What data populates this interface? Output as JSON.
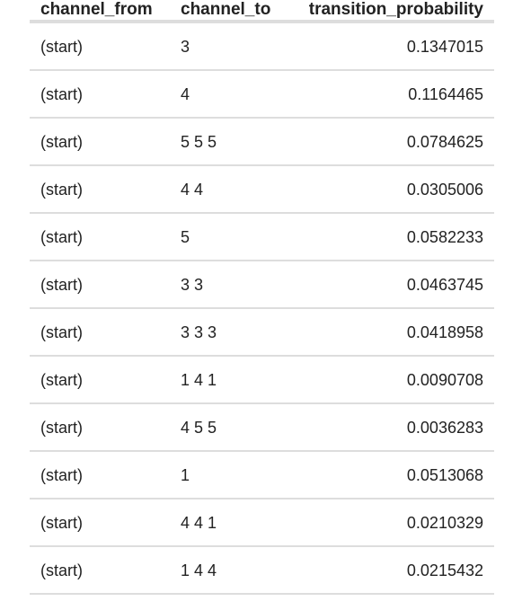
{
  "table": {
    "headers": [
      "channel_from",
      "channel_to",
      "transition_probability"
    ],
    "rows": [
      [
        "(start)",
        "3",
        "0.1347015"
      ],
      [
        "(start)",
        "4",
        "0.1164465"
      ],
      [
        "(start)",
        "5 5 5",
        "0.0784625"
      ],
      [
        "(start)",
        "4 4",
        "0.0305006"
      ],
      [
        "(start)",
        "5",
        "0.0582233"
      ],
      [
        "(start)",
        "3 3",
        "0.0463745"
      ],
      [
        "(start)",
        "3 3 3",
        "0.0418958"
      ],
      [
        "(start)",
        "1 4 1",
        "0.0090708"
      ],
      [
        "(start)",
        "4 5 5",
        "0.0036283"
      ],
      [
        "(start)",
        "1",
        "0.0513068"
      ],
      [
        "(start)",
        "4 4 1",
        "0.0210329"
      ],
      [
        "(start)",
        "1 4 4",
        "0.0215432"
      ]
    ]
  }
}
